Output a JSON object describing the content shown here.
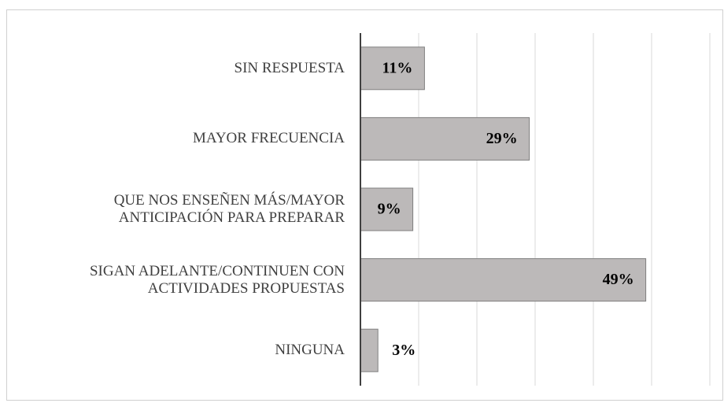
{
  "chart_data": {
    "type": "barh",
    "categories": [
      "SIN RESPUESTA",
      "MAYOR FRECUENCIA",
      "QUE NOS ENSEÑEN MÁS/MAYOR\nANTICIPACIÓN PARA PREPARAR",
      "SIGAN ADELANTE/CONTINUEN CON\nACTIVIDADES PROPUESTAS",
      "NINGUNA"
    ],
    "values": [
      11,
      29,
      9,
      49,
      3
    ],
    "value_labels": [
      "11%",
      "29%",
      "9%",
      "49%",
      "3%"
    ],
    "color": "#bcb9b9",
    "xlim": [
      0,
      60
    ],
    "xticks": [
      0,
      10,
      20,
      30,
      40,
      50,
      60
    ],
    "grid": true
  }
}
